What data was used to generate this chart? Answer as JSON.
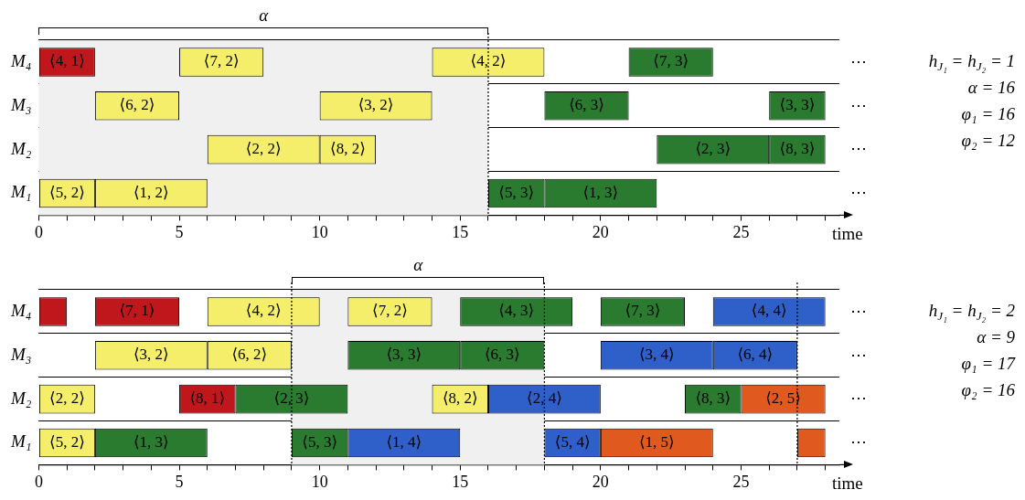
{
  "chart_data": [
    {
      "type": "bar",
      "orientation": "horizontal",
      "categories": [
        "M₄",
        "M₃",
        "M₂",
        "M₁"
      ],
      "xlabel": "time",
      "xlim": [
        0,
        28.5
      ],
      "xticks": [
        0,
        {
          "value": 1,
          "label": null
        },
        {
          "value": 2,
          "label": null
        },
        {
          "value": 3,
          "label": null
        },
        {
          "value": 4,
          "label": null
        },
        5,
        {
          "value": 6,
          "label": null
        },
        {
          "value": 7,
          "label": null
        },
        {
          "value": 8,
          "label": null
        },
        {
          "value": 9,
          "label": null
        },
        10,
        {
          "value": 11,
          "label": null
        },
        {
          "value": 12,
          "label": null
        },
        {
          "value": 13,
          "label": null
        },
        {
          "value": 14,
          "label": null
        },
        15,
        {
          "value": 16,
          "label": null
        },
        {
          "value": 17,
          "label": null
        },
        {
          "value": 18,
          "label": null
        },
        {
          "value": 19,
          "label": null
        },
        20,
        {
          "value": 21,
          "label": null
        },
        {
          "value": 22,
          "label": null
        },
        {
          "value": 23,
          "label": null
        },
        {
          "value": 24,
          "label": null
        },
        25,
        {
          "value": 26,
          "label": null
        },
        {
          "value": 27,
          "label": null
        },
        {
          "value": 28,
          "label": null
        }
      ],
      "grid": "y",
      "legend": false,
      "bands": [
        {
          "axis": "x",
          "from": 0,
          "to": 16,
          "label": "α",
          "color": "#f0f0f0"
        }
      ],
      "ref_lines": [
        {
          "axis": "x",
          "value": 16,
          "line_style": "dotted"
        }
      ],
      "annotations": [
        "⋯",
        "⋯",
        "⋯",
        "⋯",
        "h$_{J₁}$ = h$_{J₂}$ = 1",
        "α = 16",
        "φ₁ = 16",
        "φ₂ = 12"
      ],
      "series": [
        {
          "base": [
            0,
            2,
            6,
            0
          ],
          "values": [
            2,
            3,
            4,
            2
          ],
          "colors": [
            "#c0171c",
            "#f5ee6a",
            "#f5ee6a",
            "#f5ee6a"
          ],
          "value_labels": [
            "⟨4, 1⟩",
            "⟨6, 2⟩",
            "⟨2, 2⟩",
            "⟨5, 2⟩"
          ]
        },
        {
          "base": [
            5,
            10,
            10,
            2
          ],
          "values": [
            3,
            4,
            2,
            4
          ],
          "colors": [
            "#f5ee6a",
            "#f5ee6a",
            "#f5ee6a",
            "#f5ee6a"
          ],
          "value_labels": [
            "⟨7, 2⟩",
            "⟨3, 2⟩",
            "⟨8, 2⟩",
            "⟨1, 2⟩"
          ]
        },
        {
          "base": [
            14,
            18,
            22,
            16
          ],
          "values": [
            4,
            3,
            4,
            2
          ],
          "colors": [
            "#f5ee6a",
            "#2a7a2f",
            "#2a7a2f",
            "#2a7a2f"
          ],
          "value_labels": [
            "⟨4, 2⟩",
            "⟨6, 3⟩",
            "⟨2, 3⟩",
            "⟨5, 3⟩"
          ]
        },
        {
          "base": [
            21,
            26,
            26,
            18
          ],
          "values": [
            3,
            2,
            2,
            4
          ],
          "colors": [
            "#2a7a2f",
            "#2a7a2f",
            "#2a7a2f",
            "#2a7a2f"
          ],
          "value_labels": [
            "⟨7, 3⟩",
            "⟨3, 3⟩",
            "⟨8, 3⟩",
            "⟨1, 3⟩"
          ]
        }
      ]
    },
    {
      "type": "bar",
      "orientation": "horizontal",
      "categories": [
        "M₄",
        "M₃",
        "M₂",
        "M₁"
      ],
      "xlabel": "time",
      "xlim": [
        0,
        28.5
      ],
      "xticks": [
        0,
        {
          "value": 1,
          "label": null
        },
        {
          "value": 2,
          "label": null
        },
        {
          "value": 3,
          "label": null
        },
        {
          "value": 4,
          "label": null
        },
        5,
        {
          "value": 6,
          "label": null
        },
        {
          "value": 7,
          "label": null
        },
        {
          "value": 8,
          "label": null
        },
        {
          "value": 9,
          "label": null
        },
        10,
        {
          "value": 11,
          "label": null
        },
        {
          "value": 12,
          "label": null
        },
        {
          "value": 13,
          "label": null
        },
        {
          "value": 14,
          "label": null
        },
        15,
        {
          "value": 16,
          "label": null
        },
        {
          "value": 17,
          "label": null
        },
        {
          "value": 18,
          "label": null
        },
        {
          "value": 19,
          "label": null
        },
        20,
        {
          "value": 21,
          "label": null
        },
        {
          "value": 22,
          "label": null
        },
        {
          "value": 23,
          "label": null
        },
        {
          "value": 24,
          "label": null
        },
        25,
        {
          "value": 26,
          "label": null
        },
        {
          "value": 27,
          "label": null
        },
        {
          "value": 28,
          "label": null
        }
      ],
      "grid": "y",
      "legend": false,
      "bands": [
        {
          "axis": "x",
          "from": 9,
          "to": 18,
          "label": "α",
          "color": "#f0f0f0"
        }
      ],
      "ref_lines": [
        {
          "axis": "x",
          "value": 9,
          "line_style": "dotted"
        },
        {
          "axis": "x",
          "value": 18,
          "line_style": "dotted"
        },
        {
          "axis": "x",
          "value": 27,
          "line_style": "dotted"
        }
      ],
      "annotations": [
        "⋯",
        "⋯",
        "⋯",
        "⋯",
        "h$_{J₁}$ = h$_{J₂}$ = 2",
        "α = 9",
        "φ₁ = 17",
        "φ₂ = 16"
      ],
      "series": [
        {
          "base": [
            0,
            2,
            0,
            0
          ],
          "values": [
            1,
            4,
            2,
            2
          ],
          "colors": [
            "#c0171c",
            "#f5ee6a",
            "#f5ee6a",
            "#f5ee6a"
          ],
          "value_labels": [
            null,
            "⟨3, 2⟩",
            "⟨2, 2⟩",
            "⟨5, 2⟩"
          ]
        },
        {
          "base": [
            2,
            6,
            5,
            2
          ],
          "values": [
            3,
            3,
            2,
            4
          ],
          "colors": [
            "#c0171c",
            "#f5ee6a",
            "#c0171c",
            "#2a7a2f"
          ],
          "value_labels": [
            "⟨7, 1⟩",
            "⟨6, 2⟩",
            "⟨8, 1⟩",
            "⟨1, 3⟩"
          ]
        },
        {
          "base": [
            6,
            11,
            7,
            9
          ],
          "values": [
            4,
            4,
            4,
            2
          ],
          "colors": [
            "#f5ee6a",
            "#2a7a2f",
            "#2a7a2f",
            "#2a7a2f"
          ],
          "value_labels": [
            "⟨4, 2⟩",
            "⟨3, 3⟩",
            "⟨2, 3⟩",
            "⟨5, 3⟩"
          ]
        },
        {
          "base": [
            11,
            15,
            14,
            11
          ],
          "values": [
            3,
            3,
            2,
            4
          ],
          "colors": [
            "#f5ee6a",
            "#2a7a2f",
            "#f5ee6a",
            "#2f5fc8"
          ],
          "value_labels": [
            "⟨7, 2⟩",
            "⟨6, 3⟩",
            "⟨8, 2⟩",
            "⟨1, 4⟩"
          ]
        },
        {
          "base": [
            15,
            20,
            16,
            18
          ],
          "values": [
            4,
            4,
            4,
            2
          ],
          "colors": [
            "#2a7a2f",
            "#2f5fc8",
            "#2f5fc8",
            "#2f5fc8"
          ],
          "value_labels": [
            "⟨4, 3⟩",
            "⟨3, 4⟩",
            "⟨2, 4⟩",
            "⟨5, 4⟩"
          ]
        },
        {
          "base": [
            20,
            24,
            23,
            20
          ],
          "values": [
            3,
            3,
            2,
            4
          ],
          "colors": [
            "#2a7a2f",
            "#2f5fc8",
            "#2a7a2f",
            "#e05a1f"
          ],
          "value_labels": [
            "⟨7, 3⟩",
            "⟨6, 4⟩",
            "⟨8, 3⟩",
            "⟨1, 5⟩"
          ]
        },
        {
          "base": [
            24,
            null,
            25,
            27
          ],
          "values": [
            4,
            null,
            3,
            1
          ],
          "colors": [
            "#2f5fc8",
            null,
            "#e05a1f",
            "#e05a1f"
          ],
          "value_labels": [
            "⟨4, 4⟩",
            null,
            "⟨2, 5⟩",
            null
          ]
        }
      ]
    }
  ]
}
